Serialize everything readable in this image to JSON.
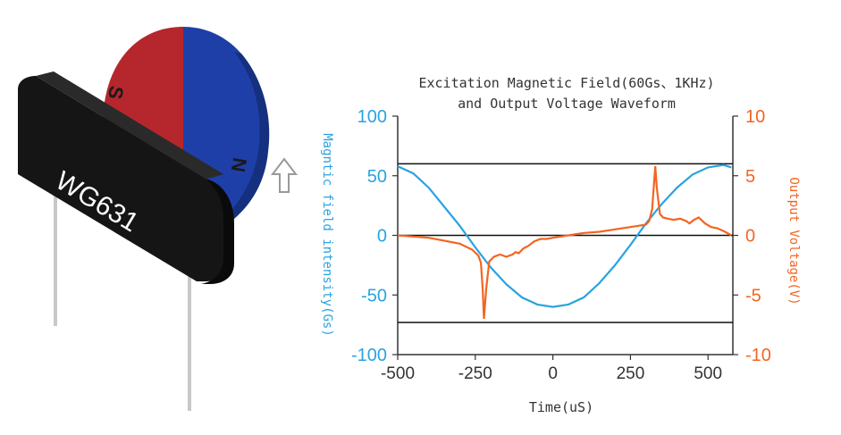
{
  "illustration": {
    "sensor_label": "WG631",
    "magnet_pole_s": "S",
    "magnet_pole_n": "N",
    "magnet_color_s": "#b5272d",
    "magnet_color_n": "#1f3fa8",
    "sensor_color": "#151515"
  },
  "chart_data": {
    "type": "line",
    "title_line1": "Excitation Magnetic Field(60Gs、1KHz)",
    "title_line2": "and Output Voltage Waveform",
    "xlabel": "Time(uS)",
    "ylabel_left": "Magntic field intensity(Gs)",
    "ylabel_right": "Output Voltage(V)",
    "xlim": [
      -500,
      580
    ],
    "ylim_left": [
      -100,
      100
    ],
    "ylim_right": [
      -10,
      10
    ],
    "x_ticks": [
      -500,
      -250,
      0,
      250,
      500
    ],
    "x_tick_labels": [
      "-500",
      "-250",
      "0",
      "250",
      "500"
    ],
    "y_left_ticks": [
      -100,
      -50,
      0,
      50,
      100
    ],
    "y_left_tick_labels": [
      "-100",
      "-50",
      "0",
      "50",
      "100"
    ],
    "y_right_ticks": [
      -10,
      -5,
      0,
      5,
      10
    ],
    "y_right_tick_labels": [
      "-10",
      "-5",
      "0",
      "5",
      "10"
    ],
    "reference_lines_left": [
      60,
      0,
      -73
    ],
    "colors": {
      "field": "#29a3e0",
      "voltage": "#f26522",
      "left_axis": "#29a3e0",
      "right_axis": "#f26522"
    },
    "series": [
      {
        "axis": "left",
        "x": [
          -500,
          -450,
          -400,
          -350,
          -300,
          -250,
          -200,
          -150,
          -100,
          -50,
          0,
          50,
          100,
          150,
          200,
          250,
          300,
          350,
          400,
          450,
          500,
          550,
          575
        ],
        "values": [
          58,
          52,
          40,
          24,
          8,
          -10,
          -27,
          -41,
          -52,
          -58,
          -60,
          -58,
          -52,
          -40,
          -25,
          -8,
          10,
          26,
          40,
          51,
          57,
          59,
          57
        ]
      },
      {
        "axis": "right",
        "x": [
          -500,
          -400,
          -300,
          -260,
          -240,
          -232,
          -226,
          -222,
          -215,
          -205,
          -190,
          -170,
          -150,
          -130,
          -120,
          -110,
          -95,
          -80,
          -60,
          -40,
          -20,
          0,
          50,
          100,
          150,
          200,
          250,
          300,
          310,
          320,
          330,
          335,
          345,
          355,
          370,
          390,
          410,
          430,
          440,
          455,
          470,
          490,
          510,
          530,
          555,
          575
        ],
        "values": [
          0,
          -0.2,
          -0.7,
          -1.2,
          -1.7,
          -2.3,
          -4.5,
          -7.0,
          -4.5,
          -2.2,
          -1.8,
          -1.6,
          -1.8,
          -1.6,
          -1.4,
          -1.5,
          -1.1,
          -0.9,
          -0.5,
          -0.3,
          -0.3,
          -0.2,
          0,
          0.2,
          0.3,
          0.5,
          0.7,
          0.9,
          1.2,
          2.2,
          5.8,
          4.0,
          1.8,
          1.5,
          1.4,
          1.3,
          1.4,
          1.2,
          1.0,
          1.3,
          1.5,
          1.0,
          0.7,
          0.6,
          0.3,
          0
        ]
      }
    ]
  }
}
